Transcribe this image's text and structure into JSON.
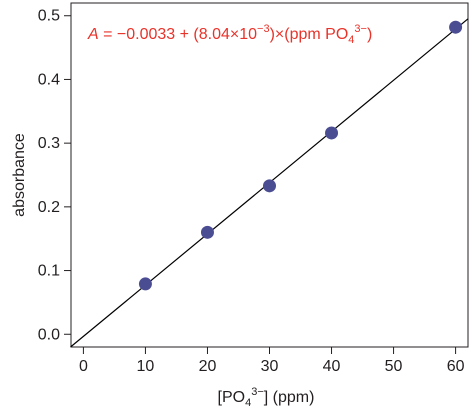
{
  "chart_data": {
    "type": "scatter",
    "xlabel": "[PO4 3−] (ppm)",
    "xlabel_parts": {
      "pre": "[PO",
      "sub": "4",
      "sup": "3−",
      "post": "] (ppm)"
    },
    "ylabel": "absorbance",
    "xlim": [
      -2,
      62
    ],
    "ylim": [
      -0.02,
      0.52
    ],
    "xticks": [
      0,
      10,
      20,
      30,
      40,
      50,
      60
    ],
    "yticks": [
      0.0,
      0.1,
      0.2,
      0.3,
      0.4,
      0.5
    ],
    "xtick_labels": [
      "0",
      "10",
      "20",
      "30",
      "40",
      "50",
      "60"
    ],
    "ytick_labels": [
      "0.0",
      "0.1",
      "0.2",
      "0.3",
      "0.4",
      "0.5"
    ],
    "points": [
      {
        "x": 10,
        "y": 0.079
      },
      {
        "x": 20,
        "y": 0.16
      },
      {
        "x": 30,
        "y": 0.233
      },
      {
        "x": 40,
        "y": 0.316
      },
      {
        "x": 60,
        "y": 0.482
      }
    ],
    "fit_line": {
      "intercept": -0.0033,
      "slope": 0.00804
    },
    "annotation": {
      "var": "A",
      "p1": " = −0.0033 + (8.04×10",
      "p1_sup": "−3",
      "p2": ")×(ppm PO",
      "p2_sub": "4",
      "p2_sup": "3−",
      "p3": ")"
    },
    "grid": false,
    "colors": {
      "points": "#4b4d93",
      "line": "#000000",
      "annotation": "#e8332a"
    }
  }
}
